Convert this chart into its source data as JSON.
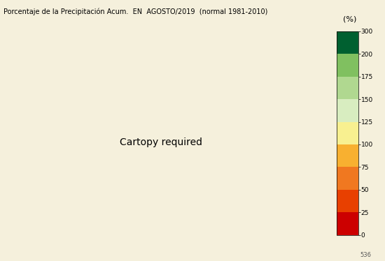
{
  "title": "Porcentaje de la Precipitación Acum.  EN  AGOSTO/2019  (normal 1981-2010)",
  "colorbar_label": "(%)",
  "colorbar_ticks": [
    0,
    25,
    50,
    75,
    100,
    125,
    150,
    175,
    200,
    300
  ],
  "colorbar_colors": [
    "#cc0000",
    "#e84000",
    "#f07820",
    "#f8b030",
    "#f8f090",
    "#d8edc0",
    "#b0d890",
    "#80c060",
    "#40a040",
    "#006030"
  ],
  "bg_map_color": "#7ec8e3",
  "bg_outer_color": "#f5f0dc",
  "title_bg_color": "#ffffc8",
  "border_color": "#555555",
  "fig_bg_color": "#f5f0dc",
  "colorbar_bg_color": "#f5f0dc",
  "figsize": [
    5.5,
    3.74
  ],
  "dpi": 100,
  "spain_extent": [
    -9.5,
    4.5,
    35.8,
    44.0
  ],
  "canary_extent": [
    -18.2,
    -13.3,
    27.5,
    29.5
  ],
  "baleares_approx_lon": [
    1.2,
    4.3
  ],
  "baleares_approx_lat": [
    38.6,
    40.1
  ]
}
